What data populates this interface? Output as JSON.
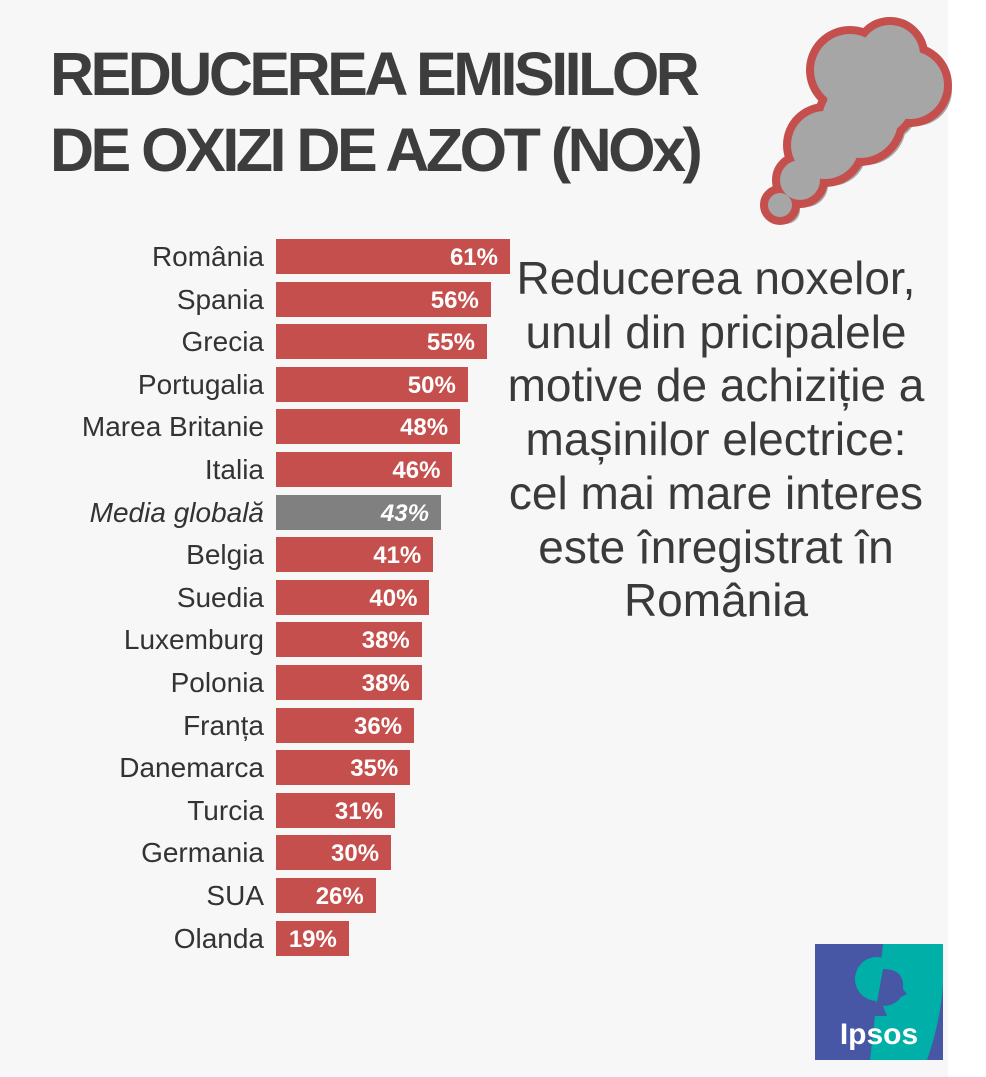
{
  "title": {
    "line1": "REDUCEREA EMISIILOR",
    "line2": "DE OXIZI DE AZOT (NOx)"
  },
  "note": "Reducerea noxelor, unul din pricipalele motive de achiziție a mașinilor electrice: cel mai mare interes este înregistrat în România",
  "logo": {
    "text": "Ipsos"
  },
  "colors": {
    "bar": "#c54f4c",
    "average": "#808080",
    "title": "#3d3d3d",
    "cloud": "#a6a6a6",
    "cloud_outline": "#c54f4c",
    "logo_blue": "#4756a5",
    "logo_teal": "#00b0a8"
  },
  "chart_data": {
    "type": "bar",
    "orientation": "horizontal",
    "title": "REDUCEREA EMISIILOR DE OXIZI DE AZOT (NOx)",
    "xlabel": "",
    "ylabel": "",
    "unit": "%",
    "xlim": [
      0,
      61
    ],
    "categories": [
      "România",
      "Spania",
      "Grecia",
      "Portugalia",
      "Marea Britanie",
      "Italia",
      "Media globală",
      "Belgia",
      "Suedia",
      "Luxemburg",
      "Polonia",
      "Franța",
      "Danemarca",
      "Turcia",
      "Germania",
      "SUA",
      "Olanda"
    ],
    "values": [
      61,
      56,
      55,
      50,
      48,
      46,
      43,
      41,
      40,
      38,
      38,
      36,
      35,
      31,
      30,
      26,
      19
    ],
    "labels": [
      "61%",
      "56%",
      "55%",
      "50%",
      "48%",
      "46%",
      "43%",
      "41%",
      "40%",
      "38%",
      "38%",
      "36%",
      "35%",
      "31%",
      "30%",
      "26%",
      "19%"
    ],
    "highlight_index": 6
  }
}
